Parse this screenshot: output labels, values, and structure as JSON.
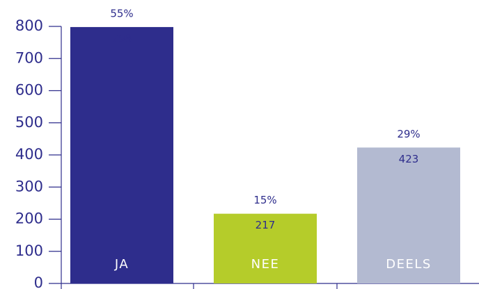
{
  "chart_data": {
    "type": "bar",
    "categories": [
      "JA",
      "NEE",
      "DEELS"
    ],
    "values": [
      798,
      217,
      423
    ],
    "percentages": [
      55,
      15,
      29
    ],
    "percentage_labels": [
      "55%",
      "15%",
      "29%"
    ],
    "colors": [
      "#2e2d8c",
      "#b5cc2a",
      "#b3bad1"
    ],
    "ylim": [
      0,
      800
    ],
    "yticks": [
      0,
      100,
      200,
      300,
      400,
      500,
      600,
      700,
      800
    ]
  }
}
